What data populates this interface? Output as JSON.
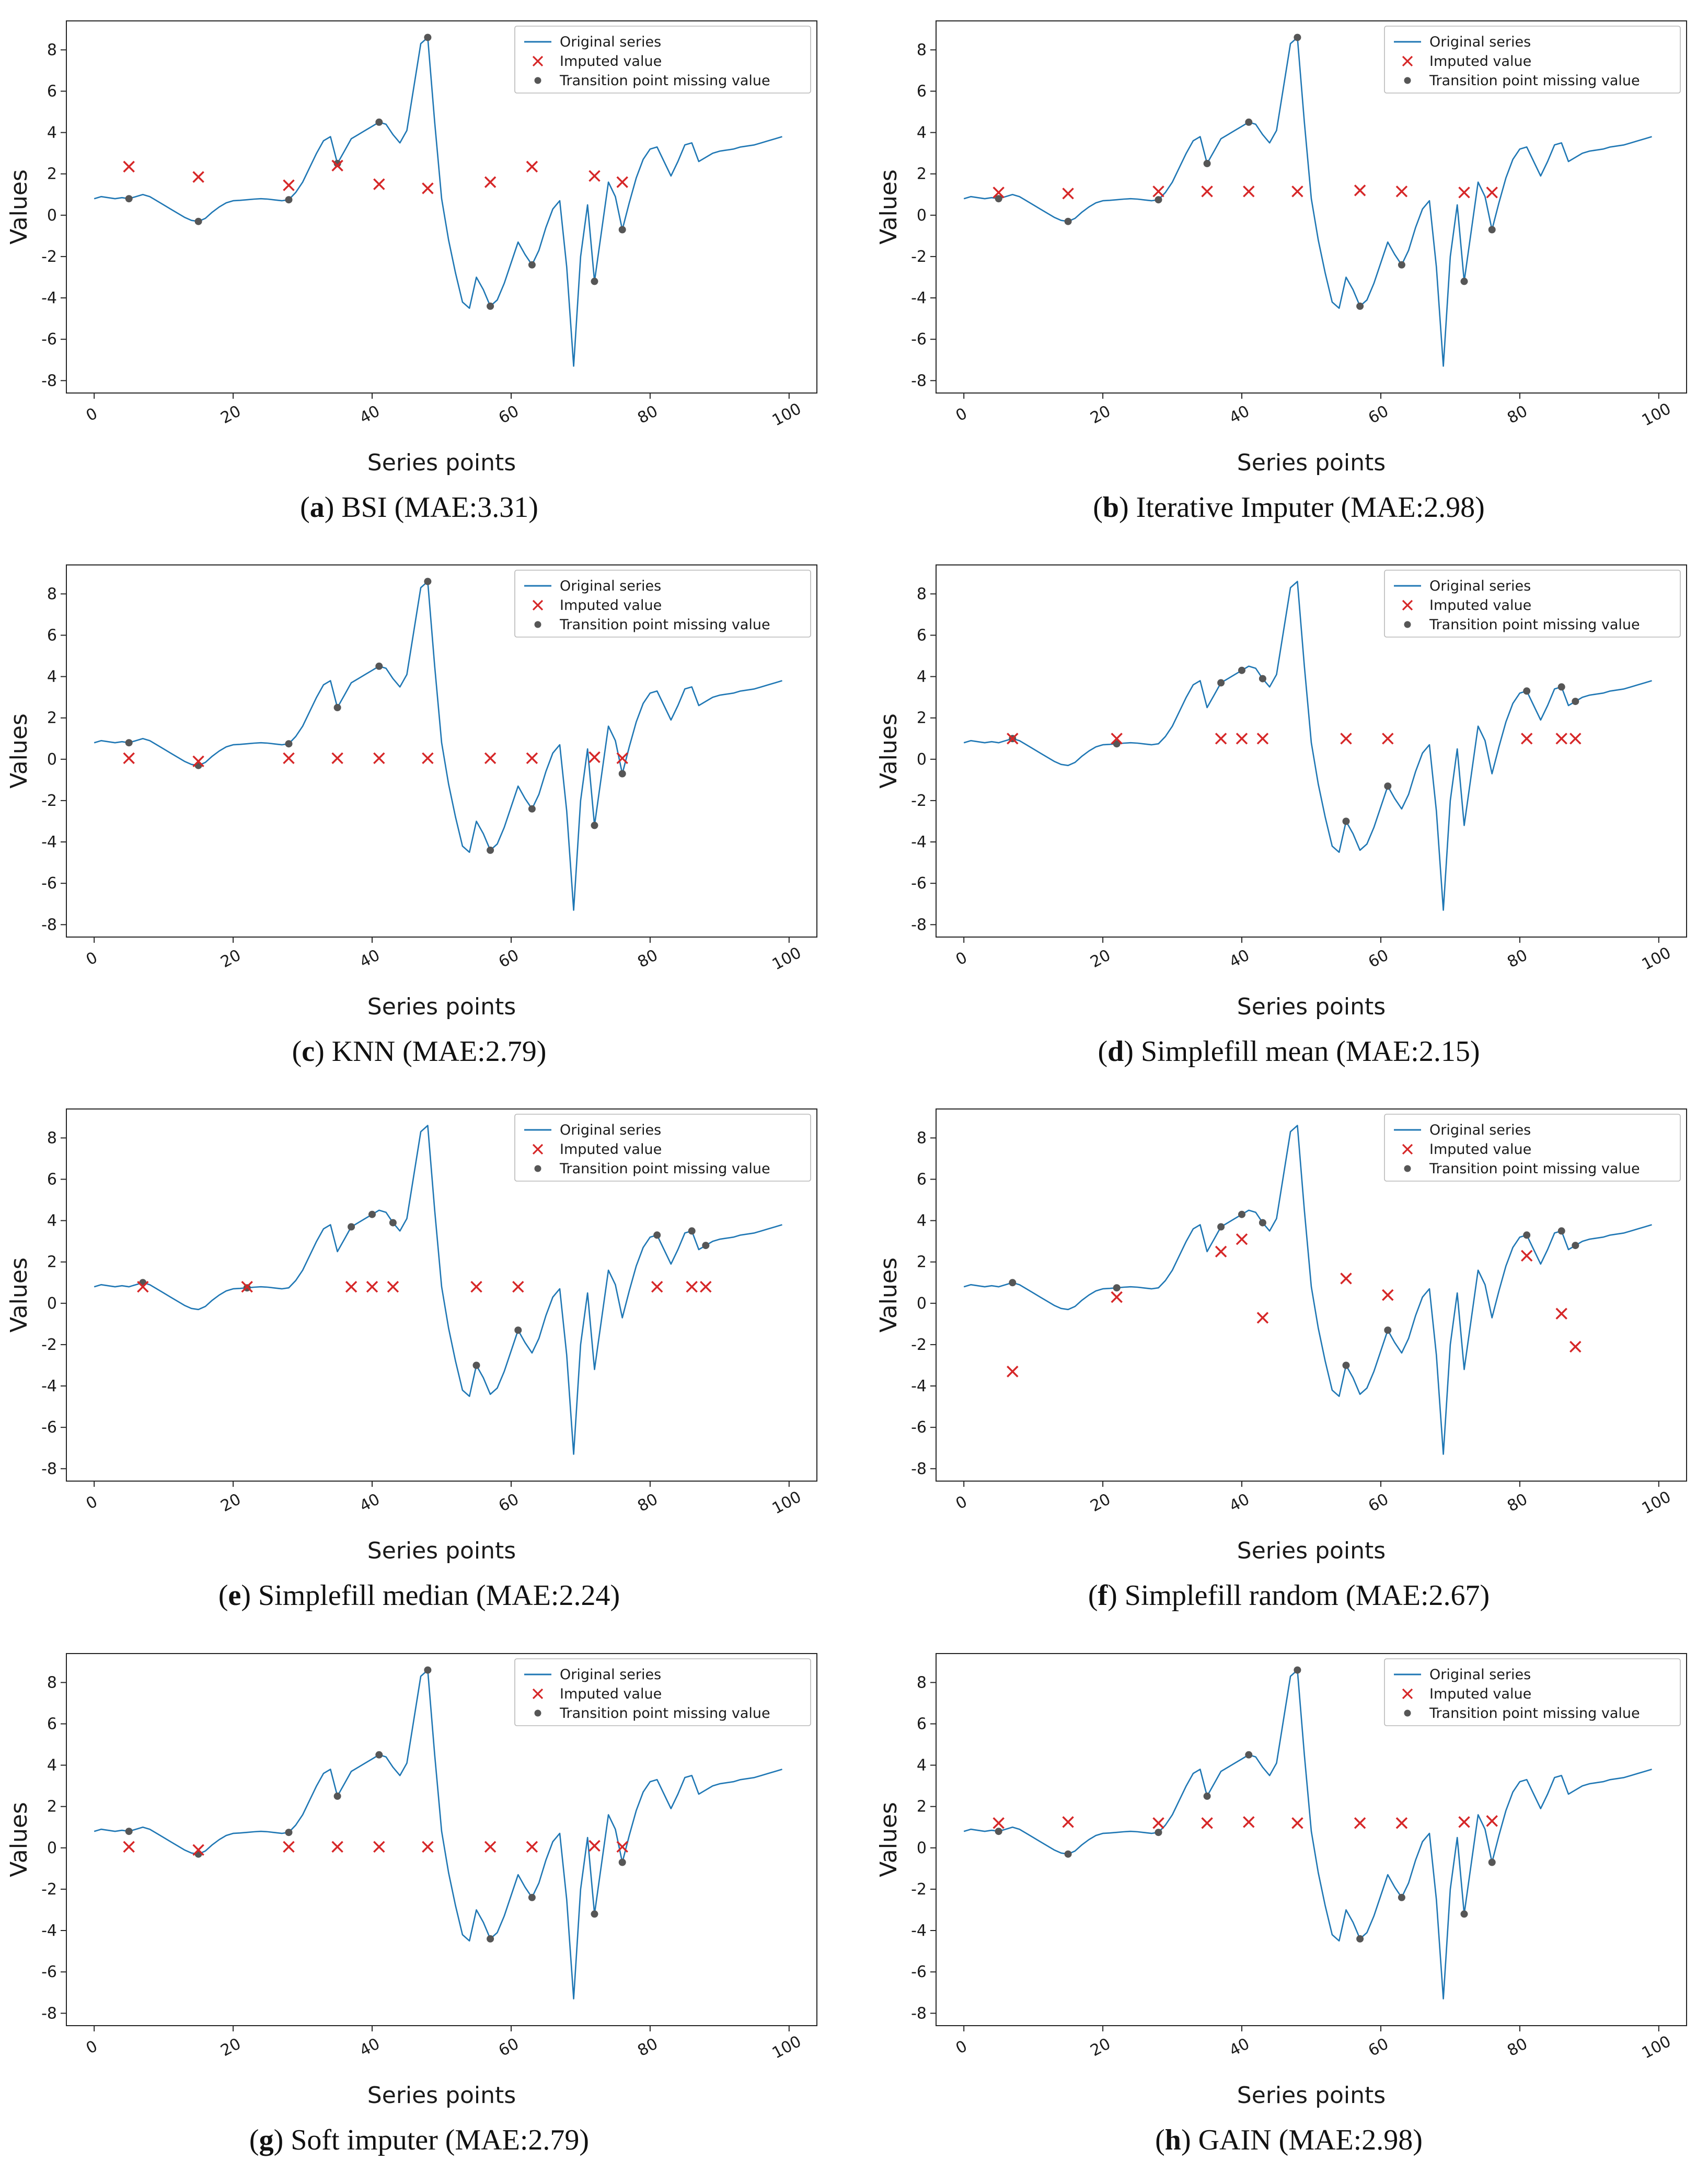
{
  "chart_data": {
    "type": "line",
    "xlabel": "Series points",
    "ylabel": "Values",
    "xlim": [
      -4,
      104
    ],
    "ylim": [
      -8.6,
      9.4
    ],
    "xticks": [
      0,
      20,
      40,
      60,
      80,
      100
    ],
    "yticks": [
      -8,
      -6,
      -4,
      -2,
      0,
      2,
      4,
      6,
      8
    ],
    "legend": [
      "Original series",
      "Imputed value",
      "Transition point missing value"
    ],
    "colors": {
      "line": "#1f77b4",
      "imputed": "#d62728",
      "transition": "#565656",
      "spine": "#262626",
      "text": "#1a1a1a",
      "legend_border": "#b8b8b8"
    },
    "base_series": [
      0.8,
      0.9,
      0.85,
      0.8,
      0.85,
      0.8,
      0.9,
      1.0,
      0.9,
      0.7,
      0.5,
      0.3,
      0.1,
      -0.1,
      -0.25,
      -0.3,
      -0.15,
      0.15,
      0.4,
      0.6,
      0.7,
      0.72,
      0.75,
      0.78,
      0.8,
      0.78,
      0.74,
      0.7,
      0.75,
      1.1,
      1.6,
      2.3,
      3.0,
      3.6,
      3.8,
      2.5,
      3.1,
      3.7,
      3.9,
      4.1,
      4.3,
      4.5,
      4.4,
      3.9,
      3.5,
      4.1,
      6.2,
      8.3,
      8.6,
      4.5,
      0.8,
      -1.2,
      -2.8,
      -4.2,
      -4.5,
      -3.0,
      -3.6,
      -4.4,
      -4.1,
      -3.3,
      -2.3,
      -1.3,
      -1.9,
      -2.4,
      -1.7,
      -0.6,
      0.3,
      0.7,
      -2.5,
      -7.3,
      -2.0,
      0.5,
      -3.2,
      -0.8,
      1.6,
      0.9,
      -0.7,
      0.6,
      1.8,
      2.7,
      3.2,
      3.3,
      2.6,
      1.9,
      2.6,
      3.4,
      3.5,
      2.6,
      2.8,
      3.0,
      3.1,
      3.15,
      3.2,
      3.3,
      3.35,
      3.4,
      3.5,
      3.6,
      3.7,
      3.8
    ],
    "subplots": [
      {
        "letter": "a",
        "label": "BSI (MAE:3.31)",
        "missing_x": [
          5,
          15,
          28,
          35,
          41,
          48,
          57,
          63,
          72,
          76
        ],
        "imputed": [
          2.35,
          1.85,
          1.45,
          2.4,
          1.5,
          1.3,
          1.6,
          2.35,
          1.9,
          1.6
        ]
      },
      {
        "letter": "b",
        "label": "Iterative Imputer (MAE:2.98)",
        "missing_x": [
          5,
          15,
          28,
          35,
          41,
          48,
          57,
          63,
          72,
          76
        ],
        "imputed": [
          1.1,
          1.05,
          1.15,
          1.15,
          1.15,
          1.15,
          1.2,
          1.15,
          1.1,
          1.1
        ]
      },
      {
        "letter": "c",
        "label": "KNN (MAE:2.79)",
        "missing_x": [
          5,
          15,
          28,
          35,
          41,
          48,
          57,
          63,
          72,
          76
        ],
        "imputed": [
          0.05,
          -0.1,
          0.05,
          0.05,
          0.05,
          0.05,
          0.05,
          0.05,
          0.1,
          0.05
        ]
      },
      {
        "letter": "d",
        "label": "Simplefill mean (MAE:2.15)",
        "missing_x": [
          7,
          22,
          37,
          40,
          43,
          55,
          61,
          81,
          86,
          88
        ],
        "imputed": [
          1.0,
          1.0,
          1.0,
          1.0,
          1.0,
          1.0,
          1.0,
          1.0,
          1.0,
          1.0
        ]
      },
      {
        "letter": "e",
        "label": "Simplefill median (MAE:2.24)",
        "missing_x": [
          7,
          22,
          37,
          40,
          43,
          55,
          61,
          81,
          86,
          88
        ],
        "imputed": [
          0.8,
          0.8,
          0.8,
          0.8,
          0.8,
          0.8,
          0.8,
          0.8,
          0.8,
          0.8
        ]
      },
      {
        "letter": "f",
        "label": "Simplefill random (MAE:2.67)",
        "missing_x": [
          7,
          22,
          37,
          40,
          43,
          55,
          61,
          81,
          86,
          88
        ],
        "imputed": [
          -3.3,
          0.3,
          2.5,
          3.1,
          -0.7,
          1.2,
          0.4,
          2.3,
          -0.5,
          -2.1
        ]
      },
      {
        "letter": "g",
        "label": "Soft imputer (MAE:2.79)",
        "missing_x": [
          5,
          15,
          28,
          35,
          41,
          48,
          57,
          63,
          72,
          76
        ],
        "imputed": [
          0.05,
          -0.1,
          0.05,
          0.05,
          0.05,
          0.05,
          0.05,
          0.05,
          0.1,
          0.05
        ]
      },
      {
        "letter": "h",
        "label": "GAIN (MAE:2.98)",
        "missing_x": [
          5,
          15,
          28,
          35,
          41,
          48,
          57,
          63,
          72,
          76
        ],
        "imputed": [
          1.2,
          1.25,
          1.2,
          1.2,
          1.25,
          1.2,
          1.2,
          1.2,
          1.25,
          1.3
        ]
      }
    ]
  }
}
